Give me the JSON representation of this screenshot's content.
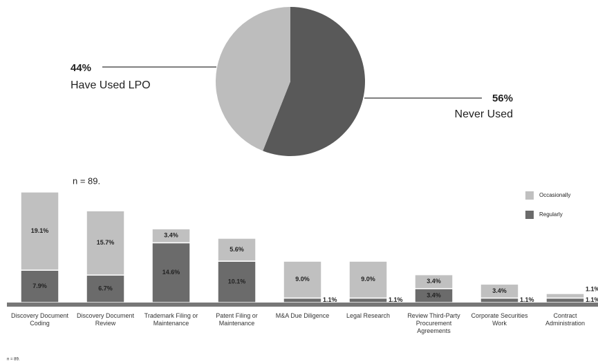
{
  "chart_data": [
    {
      "type": "pie",
      "categories": [
        "Have Used LPO",
        "Never Used"
      ],
      "values": [
        44,
        56
      ],
      "value_labels": [
        "44%",
        "56%"
      ],
      "colors": [
        "#bdbdbd",
        "#595959"
      ]
    },
    {
      "type": "bar",
      "stacked": true,
      "subtitle": "n = 89.",
      "footnote": "n = 89.",
      "categories": [
        "Discovery Document Coding",
        "Discovery Document Review",
        "Trademark Filing or Maintenance",
        "Patent Filing or Maintenance",
        "M&A Due Diligence",
        "Legal Research",
        "Review Third-Party Procurement Agreements",
        "Corporate Securities Work",
        "Contract Administration"
      ],
      "series": [
        {
          "name": "Regularly",
          "color": "#6b6b6b",
          "values": [
            7.9,
            6.7,
            14.6,
            10.1,
            1.1,
            1.1,
            3.4,
            1.1,
            1.1
          ],
          "value_labels": [
            "7.9%",
            "6.7%",
            "14.6%",
            "10.1%",
            "1.1%",
            "1.1%",
            "3.4%",
            "1.1%",
            "1.1%"
          ]
        },
        {
          "name": "Occasionally",
          "color": "#c0c0c0",
          "values": [
            19.1,
            15.7,
            3.4,
            5.6,
            9.0,
            9.0,
            3.4,
            3.4,
            1.1
          ],
          "value_labels": [
            "19.1%",
            "15.7%",
            "3.4%",
            "5.6%",
            "9.0%",
            "9.0%",
            "3.4%",
            "3.4%",
            "1.1%"
          ]
        }
      ],
      "ylim": [
        0,
        28
      ],
      "legend": "top-right"
    }
  ]
}
